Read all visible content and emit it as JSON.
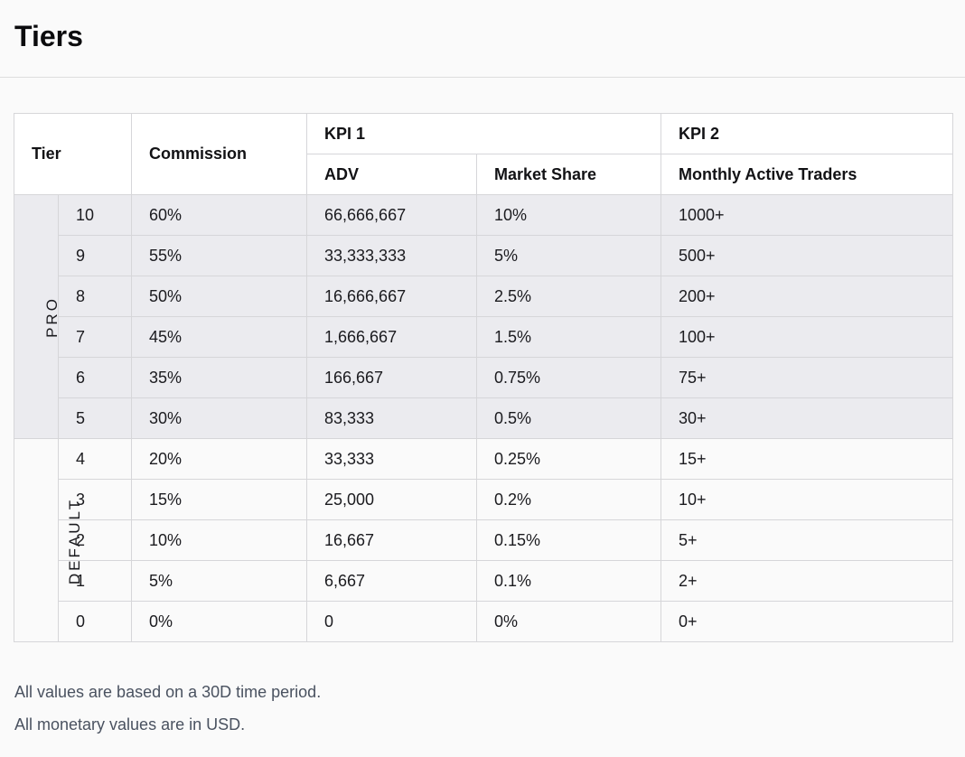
{
  "page": {
    "title": "Tiers"
  },
  "table": {
    "headers": {
      "tier": "Tier",
      "commission": "Commission",
      "kpi1": "KPI 1",
      "kpi2": "KPI 2",
      "adv": "ADV",
      "market_share": "Market Share",
      "monthly_active_traders": "Monthly Active Traders"
    },
    "groups": [
      {
        "label": "PRO",
        "row_count": 6
      },
      {
        "label": "DEFAULT",
        "row_count": 5
      }
    ],
    "rows": [
      {
        "tier": "10",
        "commission": "60%",
        "adv": "66,666,667",
        "market_share": "10%",
        "mat": "1000+"
      },
      {
        "tier": "9",
        "commission": "55%",
        "adv": "33,333,333",
        "market_share": "5%",
        "mat": "500+"
      },
      {
        "tier": "8",
        "commission": "50%",
        "adv": "16,666,667",
        "market_share": "2.5%",
        "mat": "200+"
      },
      {
        "tier": "7",
        "commission": "45%",
        "adv": "1,666,667",
        "market_share": "1.5%",
        "mat": "100+"
      },
      {
        "tier": "6",
        "commission": "35%",
        "adv": "166,667",
        "market_share": "0.75%",
        "mat": "75+"
      },
      {
        "tier": "5",
        "commission": "30%",
        "adv": "83,333",
        "market_share": "0.5%",
        "mat": "30+"
      },
      {
        "tier": "4",
        "commission": "20%",
        "adv": "33,333",
        "market_share": "0.25%",
        "mat": "15+"
      },
      {
        "tier": "3",
        "commission": "15%",
        "adv": "25,000",
        "market_share": "0.2%",
        "mat": "10+"
      },
      {
        "tier": "2",
        "commission": "10%",
        "adv": "16,667",
        "market_share": "0.15%",
        "mat": "5+"
      },
      {
        "tier": "1",
        "commission": "5%",
        "adv": "6,667",
        "market_share": "0.1%",
        "mat": "2+"
      },
      {
        "tier": "0",
        "commission": "0%",
        "adv": "0",
        "market_share": "0%",
        "mat": "0+"
      }
    ]
  },
  "notes": [
    "All values are based on a 30D time period.",
    "All monetary values are in USD."
  ],
  "colors": {
    "pro_row_bg": "#ebebef",
    "default_row_bg": "#fafafa",
    "border": "#d6d6d9",
    "note_text": "#4a5260"
  }
}
